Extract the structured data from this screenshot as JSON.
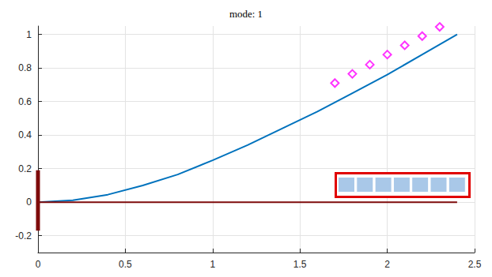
{
  "chart_data": {
    "type": "line",
    "title": "mode: 1",
    "xlim": [
      0,
      2.5
    ],
    "xticks": [
      0,
      0.5,
      1,
      1.5,
      2,
      2.5
    ],
    "ylim": [
      -0.3,
      1.05
    ],
    "yticks": [
      -0.2,
      0,
      0.2,
      0.4,
      0.6,
      0.8,
      1
    ],
    "grid": true,
    "series": [
      {
        "type": "line",
        "color": "#0072bd",
        "line_style": "solid",
        "x": [
          0,
          0.2,
          0.4,
          0.6,
          0.8,
          1.0,
          1.2,
          1.4,
          1.6,
          1.8,
          2.0,
          2.2,
          2.4
        ],
        "values": [
          0,
          0.012,
          0.045,
          0.1,
          0.165,
          0.25,
          0.34,
          0.44,
          0.54,
          0.65,
          0.76,
          0.88,
          1.0
        ]
      },
      {
        "type": "line",
        "color": "#7e0b0b",
        "line_style": "solid",
        "x": [
          0,
          2.4
        ],
        "values": [
          0,
          0
        ]
      },
      {
        "type": "line",
        "color": "#7e0b0b",
        "line_style": "solid",
        "x": [
          0,
          0
        ],
        "values": [
          -0.17,
          0.19
        ]
      },
      {
        "type": "scatter",
        "color": "#ff00ff",
        "marker": "diamond",
        "x": [
          1.7,
          1.8,
          1.9,
          2.0,
          2.1,
          2.2,
          2.3
        ],
        "values": [
          0.71,
          0.765,
          0.82,
          0.88,
          0.935,
          0.99,
          1.045
        ]
      }
    ]
  }
}
